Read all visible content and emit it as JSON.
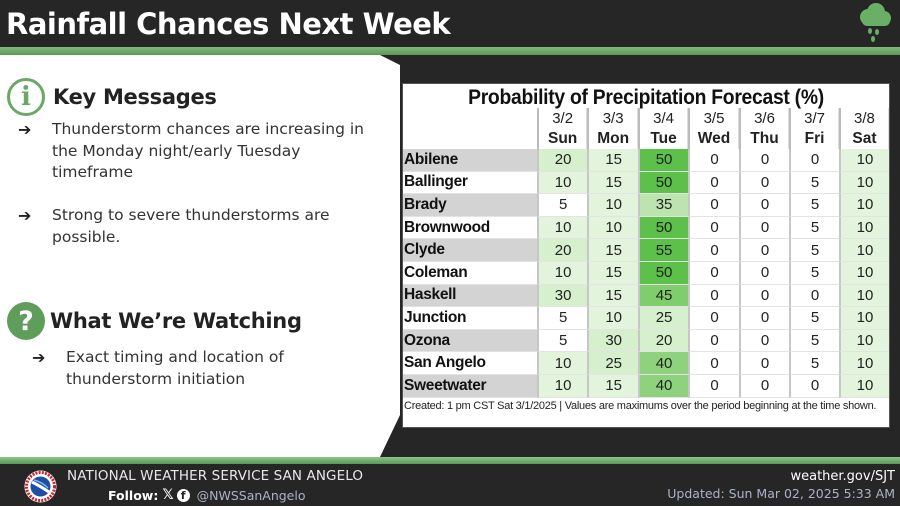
{
  "header": {
    "title": "Rainfall Chances Next Week",
    "icon": "rain-cloud-icon",
    "accent_color": "#6aa866"
  },
  "key_messages": {
    "icon": "info-icon",
    "icon_glyph": "i",
    "heading": "Key Messages",
    "bullets": [
      "Thunderstorm chances are increasing in the Monday night/early Tuesday timeframe",
      "Strong to severe thunderstorms are possible."
    ]
  },
  "watching": {
    "icon": "question-icon",
    "icon_glyph": "?",
    "heading": "What We’re Watching",
    "bullets": [
      "Exact timing and location of thunderstorm initiation"
    ]
  },
  "bullet_arrow": "➔",
  "pop_table": {
    "title": "Probability of Precipitation Forecast (%)",
    "columns": [
      {
        "date": "3/2",
        "day": "Sun"
      },
      {
        "date": "3/3",
        "day": "Mon"
      },
      {
        "date": "3/4",
        "day": "Tue"
      },
      {
        "date": "3/5",
        "day": "Wed"
      },
      {
        "date": "3/6",
        "day": "Thu"
      },
      {
        "date": "3/7",
        "day": "Fri"
      },
      {
        "date": "3/8",
        "day": "Sat"
      }
    ],
    "rows": [
      {
        "city": "Abilene",
        "values": [
          20,
          15,
          50,
          0,
          0,
          0,
          10
        ]
      },
      {
        "city": "Ballinger",
        "values": [
          10,
          15,
          50,
          0,
          0,
          5,
          10
        ]
      },
      {
        "city": "Brady",
        "values": [
          5,
          10,
          35,
          0,
          0,
          5,
          10
        ]
      },
      {
        "city": "Brownwood",
        "values": [
          10,
          10,
          50,
          0,
          0,
          5,
          10
        ]
      },
      {
        "city": "Clyde",
        "values": [
          20,
          15,
          55,
          0,
          0,
          5,
          10
        ]
      },
      {
        "city": "Coleman",
        "values": [
          10,
          15,
          50,
          0,
          0,
          5,
          10
        ]
      },
      {
        "city": "Haskell",
        "values": [
          30,
          15,
          45,
          0,
          0,
          0,
          10
        ]
      },
      {
        "city": "Junction",
        "values": [
          5,
          10,
          25,
          0,
          0,
          5,
          10
        ]
      },
      {
        "city": "Ozona",
        "values": [
          5,
          30,
          20,
          0,
          0,
          5,
          10
        ]
      },
      {
        "city": "San Angelo",
        "values": [
          10,
          25,
          40,
          0,
          0,
          5,
          10
        ]
      },
      {
        "city": "Sweetwater",
        "values": [
          10,
          15,
          40,
          0,
          0,
          0,
          10
        ]
      }
    ],
    "footnote": "Created: 1 pm CST Sat 3/1/2025  |  Values are maximums over the period beginning at the time shown."
  },
  "footer": {
    "logo": "nws-logo",
    "org": "NATIONAL WEATHER SERVICE SAN ANGELO",
    "follow_label": "Follow:",
    "x_glyph": "𝕏",
    "fb_glyph": "f",
    "handle": "@NWSSanAngelo",
    "url": "weather.gov/SJT",
    "updated": "Updated: Sun Mar 02, 2025 5:33 AM"
  }
}
